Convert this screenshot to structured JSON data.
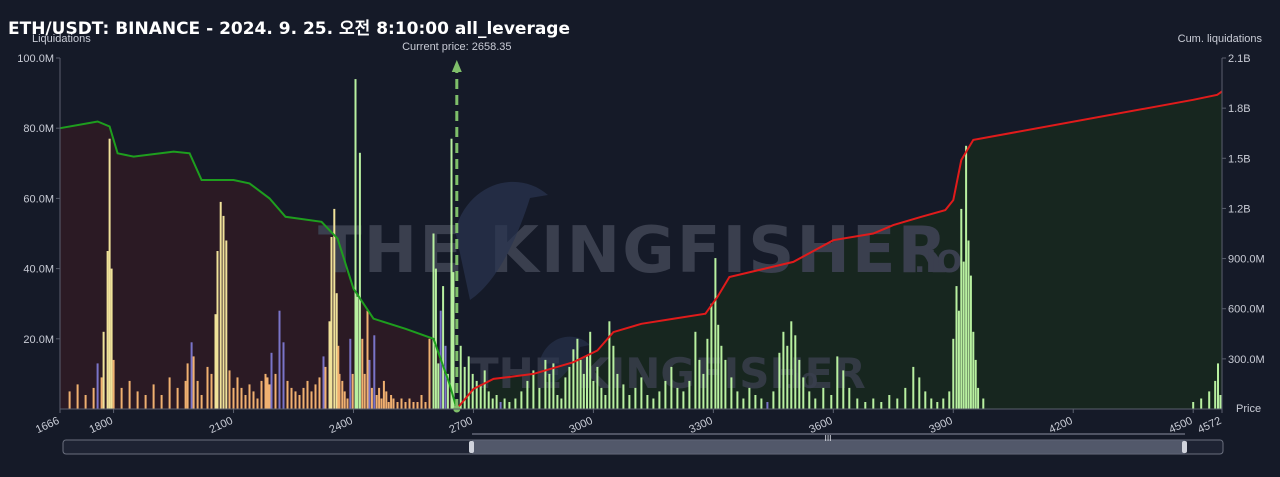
{
  "title": "ETH/USDT: BINANCE - 2024. 9. 25. 오전 8:10:00 all_leverage",
  "chart_data": {
    "type": "bar",
    "left_axis": {
      "title": "Liquidations",
      "ticks": [
        20000000,
        40000000,
        60000000,
        80000000,
        100000000
      ],
      "tick_labels": [
        "20.0M",
        "40.0M",
        "60.0M",
        "80.0M",
        "100.0M"
      ],
      "ylim": [
        0,
        100000000
      ]
    },
    "right_axis": {
      "title": "Cum. liquidations",
      "ticks": [
        300000000,
        600000000,
        900000000,
        1200000000,
        1500000000,
        1800000000,
        2100000000
      ],
      "tick_labels": [
        "300.0M",
        "600.0M",
        "900.0M",
        "1.2B",
        "1.5B",
        "1.8B",
        "2.1B"
      ],
      "ylim": [
        0,
        2100000000
      ]
    },
    "x_axis": {
      "title": "Price",
      "ticks": [
        1666,
        1800,
        2100,
        2400,
        2700,
        3000,
        3300,
        3600,
        3900,
        4200,
        4500,
        4572
      ],
      "tick_labels": [
        "1666",
        "1800",
        "2100",
        "2400",
        "2700",
        "3000",
        "3300",
        "3600",
        "3900",
        "4200",
        "4500",
        "4572"
      ]
    },
    "current_price": {
      "label": "Current price: 2658.35",
      "value": 2658.35
    },
    "colors": {
      "short_cum": "#1e9e1e",
      "long_cum": "#e01b1b",
      "left_fill": "#2b1a24",
      "right_fill": "#17261f",
      "bar_green": "#b8f0a0",
      "bar_orange": "#f0b070",
      "bar_purple": "#7a74c8",
      "bar_yellow": "#f0e29a"
    },
    "cum_short": [
      [
        1666,
        1680000000
      ],
      [
        1760,
        1720000000
      ],
      [
        1790,
        1690000000
      ],
      [
        1810,
        1530000000
      ],
      [
        1850,
        1510000000
      ],
      [
        1950,
        1540000000
      ],
      [
        1990,
        1530000000
      ],
      [
        2020,
        1370000000
      ],
      [
        2100,
        1370000000
      ],
      [
        2140,
        1350000000
      ],
      [
        2190,
        1260000000
      ],
      [
        2230,
        1150000000
      ],
      [
        2320,
        1120000000
      ],
      [
        2360,
        1020000000
      ],
      [
        2400,
        720000000
      ],
      [
        2450,
        540000000
      ],
      [
        2530,
        480000000
      ],
      [
        2600,
        420000000
      ],
      [
        2640,
        150000000
      ],
      [
        2658,
        0
      ]
    ],
    "cum_long": [
      [
        2658,
        0
      ],
      [
        2700,
        120000000
      ],
      [
        2750,
        180000000
      ],
      [
        2850,
        210000000
      ],
      [
        2950,
        280000000
      ],
      [
        3010,
        350000000
      ],
      [
        3050,
        460000000
      ],
      [
        3120,
        510000000
      ],
      [
        3200,
        540000000
      ],
      [
        3280,
        570000000
      ],
      [
        3310,
        670000000
      ],
      [
        3340,
        790000000
      ],
      [
        3500,
        880000000
      ],
      [
        3600,
        1010000000
      ],
      [
        3700,
        1050000000
      ],
      [
        3750,
        1100000000
      ],
      [
        3820,
        1150000000
      ],
      [
        3880,
        1190000000
      ],
      [
        3900,
        1250000000
      ],
      [
        3920,
        1490000000
      ],
      [
        3950,
        1610000000
      ],
      [
        4500,
        1850000000
      ],
      [
        4560,
        1880000000
      ],
      [
        4572,
        1900000000
      ]
    ],
    "bars": [
      [
        1690,
        5000000,
        "o"
      ],
      [
        1710,
        7000000,
        "o"
      ],
      [
        1730,
        4000000,
        "o"
      ],
      [
        1750,
        6000000,
        "o"
      ],
      [
        1760,
        13000000,
        "p"
      ],
      [
        1770,
        9000000,
        "o"
      ],
      [
        1775,
        22000000,
        "y"
      ],
      [
        1785,
        45000000,
        "y"
      ],
      [
        1790,
        77000000,
        "y"
      ],
      [
        1795,
        40000000,
        "y"
      ],
      [
        1800,
        14000000,
        "o"
      ],
      [
        1820,
        6000000,
        "o"
      ],
      [
        1840,
        8000000,
        "o"
      ],
      [
        1860,
        5000000,
        "o"
      ],
      [
        1880,
        4000000,
        "o"
      ],
      [
        1900,
        7000000,
        "o"
      ],
      [
        1920,
        4000000,
        "o"
      ],
      [
        1940,
        9000000,
        "o"
      ],
      [
        1960,
        6000000,
        "o"
      ],
      [
        1980,
        8000000,
        "o"
      ],
      [
        1985,
        13000000,
        "o"
      ],
      [
        1995,
        19000000,
        "p"
      ],
      [
        2000,
        15000000,
        "o"
      ],
      [
        2010,
        8000000,
        "o"
      ],
      [
        2020,
        4000000,
        "o"
      ],
      [
        2035,
        12000000,
        "o"
      ],
      [
        2045,
        10000000,
        "o"
      ],
      [
        2055,
        27000000,
        "y"
      ],
      [
        2060,
        45000000,
        "y"
      ],
      [
        2068,
        59000000,
        "y"
      ],
      [
        2075,
        55000000,
        "y"
      ],
      [
        2082,
        48000000,
        "y"
      ],
      [
        2090,
        11000000,
        "o"
      ],
      [
        2100,
        6000000,
        "o"
      ],
      [
        2110,
        9000000,
        "o"
      ],
      [
        2120,
        6000000,
        "o"
      ],
      [
        2130,
        4000000,
        "o"
      ],
      [
        2140,
        7000000,
        "o"
      ],
      [
        2150,
        5000000,
        "o"
      ],
      [
        2160,
        3000000,
        "o"
      ],
      [
        2170,
        8000000,
        "o"
      ],
      [
        2180,
        10000000,
        "o"
      ],
      [
        2185,
        9000000,
        "o"
      ],
      [
        2190,
        7000000,
        "o"
      ],
      [
        2195,
        16000000,
        "p"
      ],
      [
        2205,
        10000000,
        "o"
      ],
      [
        2215,
        28000000,
        "p"
      ],
      [
        2225,
        19000000,
        "p"
      ],
      [
        2235,
        8000000,
        "o"
      ],
      [
        2245,
        6000000,
        "o"
      ],
      [
        2255,
        5000000,
        "o"
      ],
      [
        2265,
        4000000,
        "o"
      ],
      [
        2275,
        6000000,
        "o"
      ],
      [
        2285,
        8000000,
        "o"
      ],
      [
        2295,
        5000000,
        "o"
      ],
      [
        2305,
        7000000,
        "o"
      ],
      [
        2315,
        9000000,
        "o"
      ],
      [
        2325,
        15000000,
        "p"
      ],
      [
        2330,
        12000000,
        "o"
      ],
      [
        2340,
        25000000,
        "y"
      ],
      [
        2345,
        49000000,
        "y"
      ],
      [
        2352,
        57000000,
        "y"
      ],
      [
        2358,
        33000000,
        "y"
      ],
      [
        2362,
        18000000,
        "o"
      ],
      [
        2365,
        10000000,
        "o"
      ],
      [
        2372,
        8000000,
        "o"
      ],
      [
        2378,
        5000000,
        "o"
      ],
      [
        2385,
        3000000,
        "o"
      ],
      [
        2392,
        20000000,
        "p"
      ],
      [
        2398,
        10000000,
        "o"
      ],
      [
        2405,
        94000000,
        "g"
      ],
      [
        2410,
        32000000,
        "g"
      ],
      [
        2416,
        73000000,
        "g"
      ],
      [
        2422,
        20000000,
        "o"
      ],
      [
        2428,
        10000000,
        "o"
      ],
      [
        2435,
        28000000,
        "o"
      ],
      [
        2440,
        14000000,
        "p"
      ],
      [
        2446,
        6000000,
        "o"
      ],
      [
        2452,
        21000000,
        "p"
      ],
      [
        2458,
        4000000,
        "o"
      ],
      [
        2464,
        6000000,
        "o"
      ],
      [
        2470,
        3000000,
        "o"
      ],
      [
        2476,
        8000000,
        "o"
      ],
      [
        2482,
        5000000,
        "o"
      ],
      [
        2488,
        2000000,
        "o"
      ],
      [
        2494,
        4000000,
        "o"
      ],
      [
        2500,
        3000000,
        "o"
      ],
      [
        2510,
        2000000,
        "o"
      ],
      [
        2520,
        3000000,
        "o"
      ],
      [
        2530,
        2000000,
        "o"
      ],
      [
        2540,
        3000000,
        "o"
      ],
      [
        2550,
        2000000,
        "o"
      ],
      [
        2560,
        2000000,
        "o"
      ],
      [
        2570,
        4000000,
        "o"
      ],
      [
        2580,
        2000000,
        "o"
      ],
      [
        2590,
        20000000,
        "o"
      ],
      [
        2600,
        50000000,
        "g"
      ],
      [
        2606,
        40000000,
        "g"
      ],
      [
        2612,
        13000000,
        "g"
      ],
      [
        2618,
        28000000,
        "p"
      ],
      [
        2624,
        35000000,
        "g"
      ],
      [
        2630,
        18000000,
        "p"
      ],
      [
        2636,
        10000000,
        "g"
      ],
      [
        2645,
        77000000,
        "g"
      ],
      [
        2650,
        39000000,
        "g"
      ],
      [
        2668,
        18000000,
        "g"
      ],
      [
        2678,
        12000000,
        "g"
      ],
      [
        2688,
        15000000,
        "g"
      ],
      [
        2698,
        10000000,
        "g"
      ],
      [
        2708,
        8000000,
        "g"
      ],
      [
        2718,
        7000000,
        "g"
      ],
      [
        2728,
        11000000,
        "g"
      ],
      [
        2738,
        5000000,
        "g"
      ],
      [
        2748,
        3000000,
        "g"
      ],
      [
        2758,
        4000000,
        "g"
      ],
      [
        2768,
        2000000,
        "p"
      ],
      [
        2778,
        3000000,
        "g"
      ],
      [
        2790,
        2000000,
        "g"
      ],
      [
        2805,
        3000000,
        "g"
      ],
      [
        2820,
        5000000,
        "g"
      ],
      [
        2835,
        8000000,
        "g"
      ],
      [
        2850,
        11000000,
        "g"
      ],
      [
        2865,
        6000000,
        "g"
      ],
      [
        2880,
        14000000,
        "g"
      ],
      [
        2890,
        10000000,
        "g"
      ],
      [
        2900,
        13000000,
        "g"
      ],
      [
        2910,
        4000000,
        "g"
      ],
      [
        2920,
        3000000,
        "g"
      ],
      [
        2930,
        9000000,
        "g"
      ],
      [
        2940,
        12000000,
        "g"
      ],
      [
        2950,
        17000000,
        "g"
      ],
      [
        2960,
        20000000,
        "g"
      ],
      [
        2968,
        14000000,
        "g"
      ],
      [
        2976,
        10000000,
        "g"
      ],
      [
        2984,
        15000000,
        "g"
      ],
      [
        2992,
        22000000,
        "g"
      ],
      [
        3000,
        8000000,
        "g"
      ],
      [
        3010,
        12000000,
        "g"
      ],
      [
        3020,
        6000000,
        "g"
      ],
      [
        3030,
        4000000,
        "g"
      ],
      [
        3040,
        25000000,
        "g"
      ],
      [
        3050,
        18000000,
        "g"
      ],
      [
        3060,
        10000000,
        "g"
      ],
      [
        3075,
        7000000,
        "g"
      ],
      [
        3090,
        4000000,
        "g"
      ],
      [
        3105,
        6000000,
        "g"
      ],
      [
        3120,
        9000000,
        "g"
      ],
      [
        3135,
        4000000,
        "g"
      ],
      [
        3150,
        3000000,
        "g"
      ],
      [
        3165,
        5000000,
        "g"
      ],
      [
        3180,
        8000000,
        "g"
      ],
      [
        3195,
        12000000,
        "g"
      ],
      [
        3210,
        6000000,
        "g"
      ],
      [
        3225,
        5000000,
        "g"
      ],
      [
        3240,
        8000000,
        "g"
      ],
      [
        3255,
        22000000,
        "g"
      ],
      [
        3265,
        14000000,
        "g"
      ],
      [
        3275,
        10000000,
        "g"
      ],
      [
        3285,
        20000000,
        "g"
      ],
      [
        3295,
        30000000,
        "g"
      ],
      [
        3305,
        43000000,
        "g"
      ],
      [
        3312,
        24000000,
        "g"
      ],
      [
        3320,
        18000000,
        "g"
      ],
      [
        3330,
        14000000,
        "g"
      ],
      [
        3345,
        9000000,
        "g"
      ],
      [
        3360,
        5000000,
        "g"
      ],
      [
        3375,
        3000000,
        "g"
      ],
      [
        3390,
        6000000,
        "g"
      ],
      [
        3405,
        4000000,
        "g"
      ],
      [
        3420,
        3000000,
        "g"
      ],
      [
        3435,
        2000000,
        "p"
      ],
      [
        3450,
        5000000,
        "g"
      ],
      [
        3465,
        16000000,
        "g"
      ],
      [
        3475,
        22000000,
        "g"
      ],
      [
        3485,
        18000000,
        "g"
      ],
      [
        3495,
        25000000,
        "g"
      ],
      [
        3505,
        21000000,
        "g"
      ],
      [
        3515,
        14000000,
        "g"
      ],
      [
        3525,
        9000000,
        "g"
      ],
      [
        3540,
        5000000,
        "g"
      ],
      [
        3555,
        3000000,
        "g"
      ],
      [
        3575,
        6000000,
        "g"
      ],
      [
        3595,
        4000000,
        "g"
      ],
      [
        3610,
        15000000,
        "g"
      ],
      [
        3625,
        11000000,
        "g"
      ],
      [
        3640,
        6000000,
        "g"
      ],
      [
        3660,
        3000000,
        "g"
      ],
      [
        3680,
        2000000,
        "g"
      ],
      [
        3700,
        3000000,
        "g"
      ],
      [
        3720,
        2000000,
        "g"
      ],
      [
        3740,
        4000000,
        "g"
      ],
      [
        3760,
        3000000,
        "g"
      ],
      [
        3780,
        6000000,
        "g"
      ],
      [
        3800,
        12000000,
        "g"
      ],
      [
        3815,
        9000000,
        "g"
      ],
      [
        3830,
        5000000,
        "g"
      ],
      [
        3845,
        3000000,
        "g"
      ],
      [
        3860,
        2000000,
        "g"
      ],
      [
        3875,
        3000000,
        "g"
      ],
      [
        3890,
        5000000,
        "g"
      ],
      [
        3900,
        20000000,
        "g"
      ],
      [
        3908,
        35000000,
        "g"
      ],
      [
        3914,
        28000000,
        "g"
      ],
      [
        3920,
        57000000,
        "g"
      ],
      [
        3926,
        42000000,
        "g"
      ],
      [
        3932,
        75000000,
        "g"
      ],
      [
        3938,
        48000000,
        "g"
      ],
      [
        3944,
        38000000,
        "g"
      ],
      [
        3950,
        22000000,
        "g"
      ],
      [
        3956,
        14000000,
        "g"
      ],
      [
        3962,
        6000000,
        "g"
      ],
      [
        3975,
        3000000,
        "g"
      ],
      [
        4500,
        2000000,
        "g"
      ],
      [
        4520,
        3000000,
        "g"
      ],
      [
        4540,
        5000000,
        "g"
      ],
      [
        4555,
        8000000,
        "g"
      ],
      [
        4562,
        13000000,
        "g"
      ],
      [
        4568,
        4000000,
        "g"
      ]
    ]
  },
  "watermark": {
    "main": "THE KINGFISHER",
    "suffix": ".IO"
  },
  "scrollbar": {
    "thumb_label": "III"
  }
}
